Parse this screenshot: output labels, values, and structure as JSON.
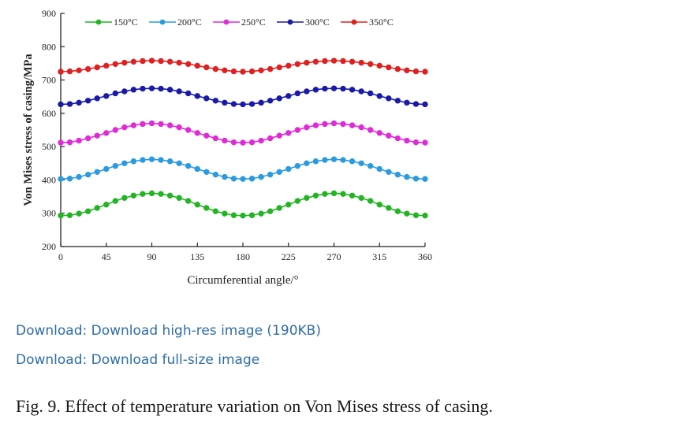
{
  "chart_data": {
    "type": "line",
    "title": "",
    "xlabel": "Circumferential angle/°",
    "ylabel": "Von Mises stress of casing/MPa",
    "xlim": [
      0,
      360
    ],
    "ylim": [
      200,
      900
    ],
    "xticks": [
      "0",
      "45",
      "90",
      "135",
      "180",
      "225",
      "270",
      "315",
      "360"
    ],
    "yticks": [
      "200",
      "300",
      "400",
      "500",
      "600",
      "700",
      "800",
      "900"
    ],
    "legend_position": "top",
    "x": [
      0,
      9,
      18,
      27,
      36,
      45,
      54,
      63,
      72,
      81,
      90,
      99,
      108,
      117,
      126,
      135,
      144,
      153,
      162,
      171,
      180,
      189,
      198,
      207,
      216,
      225,
      234,
      243,
      252,
      261,
      270,
      279,
      288,
      297,
      306,
      315,
      324,
      333,
      342,
      351,
      360
    ],
    "series": [
      {
        "name": "150°C",
        "color": "#22b422",
        "values": [
          293,
          294,
          299,
          306,
          316,
          326,
          337,
          346,
          353,
          358,
          360,
          358,
          353,
          346,
          337,
          326,
          316,
          306,
          299,
          294,
          293,
          294,
          299,
          306,
          316,
          326,
          337,
          346,
          353,
          358,
          360,
          358,
          353,
          346,
          337,
          326,
          316,
          306,
          299,
          294,
          293
        ]
      },
      {
        "name": "200°C",
        "color": "#2b9be0",
        "values": [
          403,
          404,
          409,
          416,
          424,
          433,
          442,
          450,
          456,
          460,
          462,
          460,
          456,
          450,
          442,
          433,
          424,
          416,
          409,
          404,
          403,
          404,
          409,
          416,
          424,
          433,
          442,
          450,
          456,
          460,
          462,
          460,
          456,
          450,
          442,
          433,
          424,
          416,
          409,
          404,
          403
        ]
      },
      {
        "name": "250°C",
        "color": "#e02ad8",
        "values": [
          512,
          513,
          518,
          525,
          533,
          541,
          550,
          558,
          564,
          568,
          570,
          568,
          564,
          558,
          550,
          541,
          533,
          525,
          518,
          513,
          512,
          513,
          518,
          525,
          533,
          541,
          550,
          558,
          564,
          568,
          570,
          568,
          564,
          558,
          550,
          541,
          533,
          525,
          518,
          513,
          512
        ]
      },
      {
        "name": "300°C",
        "color": "#1a1aa8",
        "values": [
          627,
          628,
          632,
          638,
          645,
          652,
          660,
          666,
          671,
          674,
          675,
          674,
          671,
          666,
          660,
          652,
          645,
          638,
          632,
          628,
          627,
          628,
          632,
          638,
          645,
          652,
          660,
          666,
          671,
          674,
          675,
          674,
          671,
          666,
          660,
          652,
          645,
          638,
          632,
          628,
          627
        ]
      },
      {
        "name": "350°C",
        "color": "#e02020",
        "values": [
          725,
          726,
          729,
          733,
          738,
          743,
          748,
          752,
          755,
          757,
          758,
          757,
          755,
          752,
          748,
          743,
          738,
          733,
          729,
          726,
          725,
          726,
          729,
          733,
          738,
          743,
          748,
          752,
          755,
          757,
          758,
          757,
          755,
          752,
          748,
          743,
          738,
          733,
          729,
          726,
          725
        ]
      }
    ]
  },
  "links": {
    "highres": "Download: Download high-res image (190KB)",
    "fullsize": "Download: Download full-size image"
  },
  "caption": "Fig. 9. Effect of temperature variation on Von Mises stress of casing."
}
